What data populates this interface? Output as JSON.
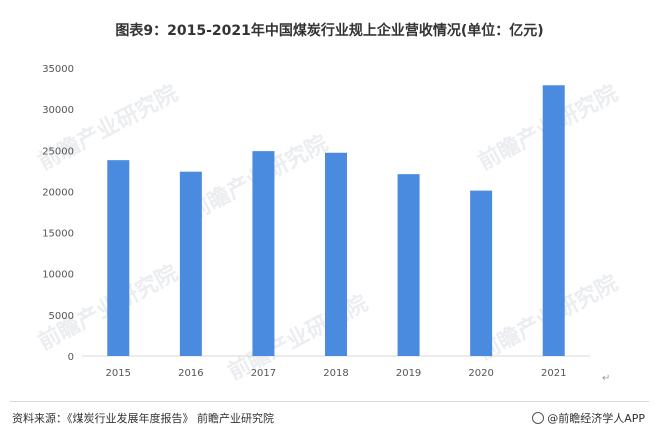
{
  "title": "图表9：2015-2021年中国煤炭行业规上企业营收情况(单位：亿元)",
  "watermark": "前瞻产业研究院",
  "source": "资料来源：《煤炭行业发展年度报告》 前瞻产业研究院",
  "brand": "@前瞻经济学人APP",
  "return_mark": "↵",
  "colors": {
    "bar": "#4a8be0",
    "axis": "#d9d9d9"
  },
  "chart_data": {
    "type": "bar",
    "title": "图表9：2015-2021年中国煤炭行业规上企业营收情况(单位：亿元)",
    "categories": [
      "2015",
      "2016",
      "2017",
      "2018",
      "2019",
      "2020",
      "2021"
    ],
    "values": [
      23800,
      22400,
      24900,
      24700,
      22100,
      20100,
      32900
    ],
    "ylim": [
      0,
      35000
    ],
    "yticks": [
      0,
      5000,
      10000,
      15000,
      20000,
      25000,
      30000,
      35000
    ],
    "grid": false,
    "legend": "none"
  }
}
